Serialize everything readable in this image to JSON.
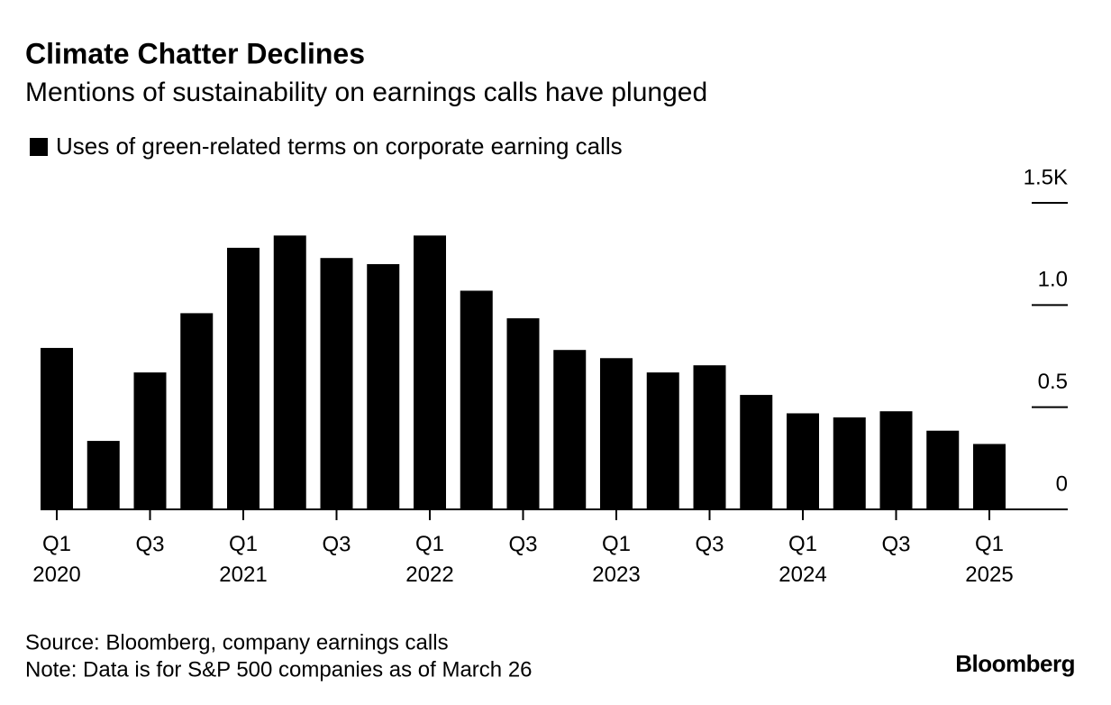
{
  "chart_data": {
    "type": "bar",
    "title": "Climate Chatter Declines",
    "subtitle": "Mentions of sustainability on earnings calls have plunged",
    "legend": "Uses of green-related terms on corporate earning calls",
    "color": "#000000",
    "categories": [
      "Q1\n2020",
      null,
      "Q3",
      null,
      "Q1\n2021",
      null,
      "Q3",
      null,
      "Q1\n2022",
      null,
      "Q3",
      null,
      "Q1\n2023",
      null,
      "Q3",
      null,
      "Q1\n2024",
      null,
      "Q3",
      null,
      "Q1\n2025"
    ],
    "values": [
      0.79,
      0.335,
      0.67,
      0.96,
      1.28,
      1.34,
      1.23,
      1.2,
      1.34,
      1.07,
      0.935,
      0.78,
      0.74,
      0.67,
      0.705,
      0.56,
      0.47,
      0.45,
      0.48,
      0.385,
      0.32
    ],
    "ylim": [
      0,
      1.5
    ],
    "yticks": [
      0,
      0.5,
      {
        "value": 1,
        "label": "1.0"
      },
      {
        "value": 1.5,
        "label": "1.5K"
      }
    ],
    "source": "Source: Bloomberg, company earnings calls",
    "note": "Note: Data is for S&P 500 companies as of March 26",
    "brand": "Bloomberg"
  }
}
